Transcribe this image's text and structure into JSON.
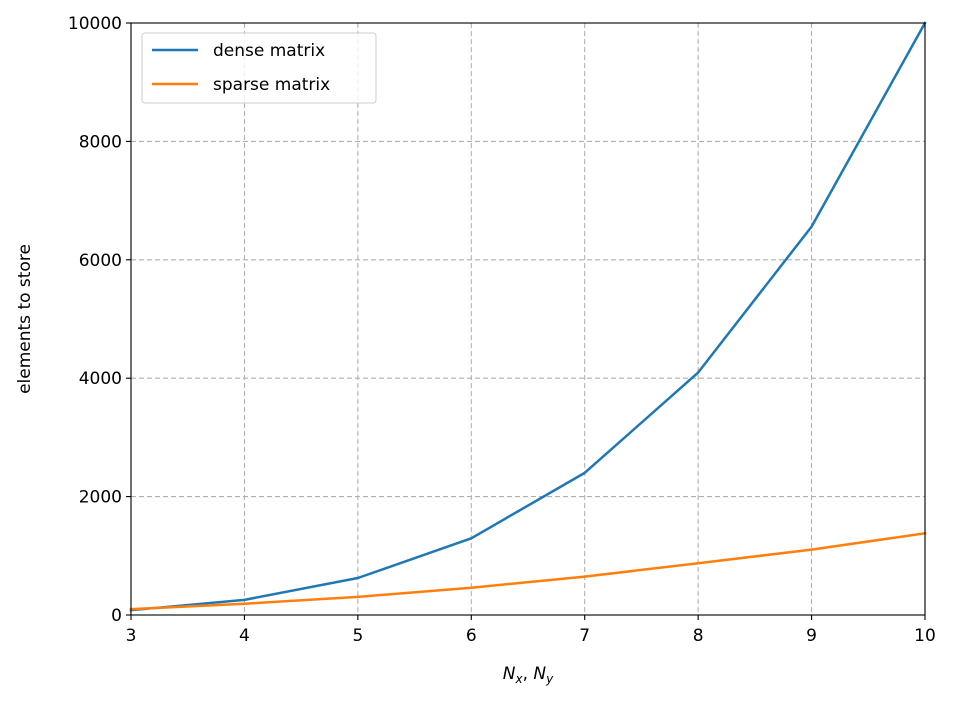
{
  "chart_data": {
    "type": "line",
    "x": [
      3,
      4,
      5,
      6,
      7,
      8,
      9,
      10
    ],
    "series": [
      {
        "name": "dense matrix",
        "color": "#1f77b4",
        "values": [
          81,
          256,
          625,
          1296,
          2401,
          4096,
          6561,
          10000
        ]
      },
      {
        "name": "sparse matrix",
        "color": "#ff7f0e",
        "values": [
          99,
          190,
          307,
          460,
          649,
          874,
          1105,
          1380
        ]
      }
    ],
    "xlabel_main_1": "N",
    "xlabel_sub_1": "x",
    "xlabel_sep": ", ",
    "xlabel_main_2": "N",
    "xlabel_sub_2": "y",
    "ylabel": "elements to store",
    "xlim": [
      3,
      10
    ],
    "ylim": [
      0,
      10000
    ],
    "xticks": [
      3,
      4,
      5,
      6,
      7,
      8,
      9,
      10
    ],
    "yticks": [
      0,
      2000,
      4000,
      6000,
      8000,
      10000
    ],
    "grid": true,
    "legend_position": "upper-left"
  }
}
